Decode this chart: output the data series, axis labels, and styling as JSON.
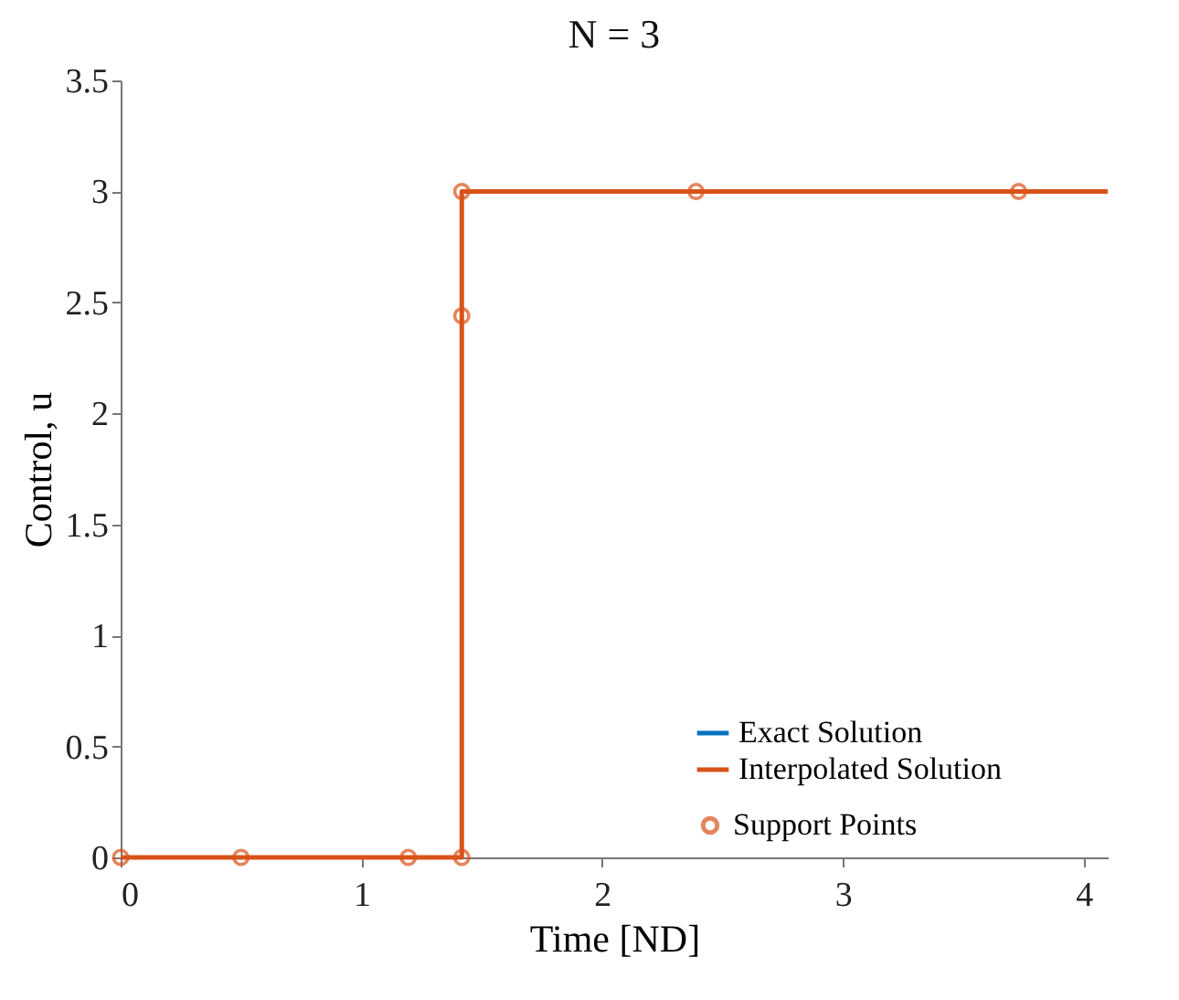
{
  "chart_data": {
    "type": "line",
    "title": "N = 3",
    "xlabel": "Time [ND]",
    "ylabel": "Control, u",
    "xlim": [
      0,
      4.1
    ],
    "xticks": [
      0,
      1,
      2,
      3,
      4
    ],
    "ylim": [
      0,
      3.5
    ],
    "yticks": [
      0,
      0.5,
      1,
      1.5,
      2,
      2.5,
      3,
      3.5
    ],
    "grid": false,
    "legend": "bottom right",
    "line_style": "solid",
    "series": [
      {
        "name": "Exact Solution",
        "type": "line",
        "color": "#0072bd"
      },
      {
        "name": "Interpolated Solution",
        "type": "line",
        "color": "#d95319",
        "x": [
          0,
          1.417,
          1.417,
          4.1
        ],
        "values": [
          0,
          0,
          3,
          3
        ]
      },
      {
        "name": "Support Points",
        "type": "scatter",
        "marker": "circle",
        "color": "#d95319",
        "x": [
          0,
          0.5,
          1.195,
          1.417,
          1.417,
          1.417,
          2.39,
          3.73
        ],
        "values": [
          0,
          0,
          0,
          0,
          2.44,
          3,
          3,
          3
        ]
      }
    ]
  }
}
